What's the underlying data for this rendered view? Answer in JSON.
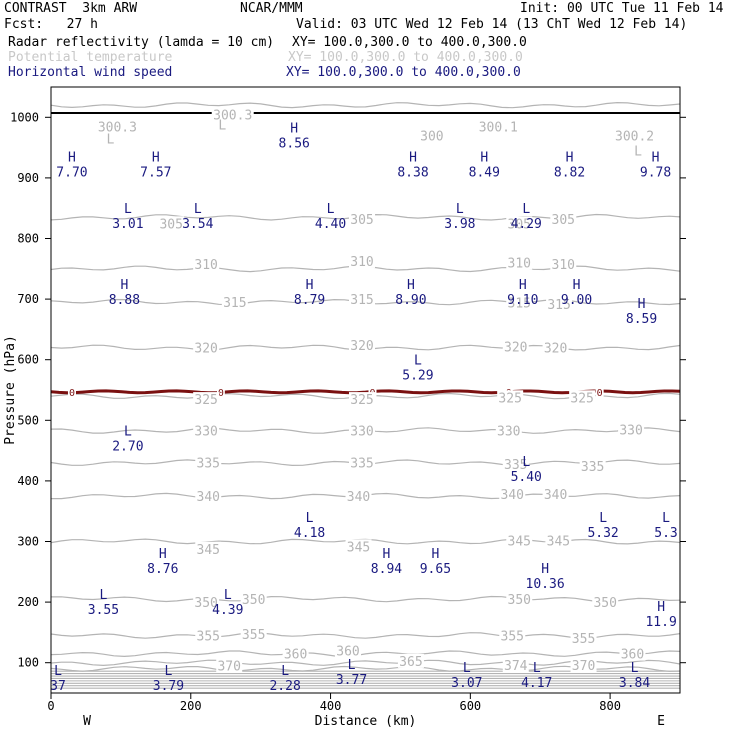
{
  "header": {
    "model": "CONTRAST  3km ARW",
    "org": "NCAR/MMM",
    "init": "Init: 00 UTC Tue 11 Feb 14",
    "fcst": "Fcst:   27 h",
    "valid": "Valid: 03 UTC Wed 12 Feb 14 (13 ChT Wed 12 Feb 14)",
    "fields": [
      {
        "name": "Radar reflectivity (lamda = 10 cm)",
        "xy": "XY= 100.0,300.0 to 400.0,300.0",
        "color": "#000000"
      },
      {
        "name": "Potential temperature",
        "xy": "XY= 100.0,300.0 to 400.0,300.0",
        "color": "#c8c8c8"
      },
      {
        "name": "Horizontal wind speed",
        "xy": "XY= 100.0,300.0 to 400.0,300.0",
        "color": "#1a1a80"
      }
    ]
  },
  "colors": {
    "theta": "#b4b4b4",
    "wind": "#1a1a80",
    "reflectivity": "#7a1010",
    "axis": "#000000"
  },
  "chart_data": {
    "type": "line",
    "title": "",
    "xlabel": "Distance (km)",
    "ylabel": "Pressure (hPa)",
    "xlim": [
      0,
      900
    ],
    "ylim": [
      1050,
      50
    ],
    "xticks": [
      0,
      200,
      400,
      600,
      800
    ],
    "yticks": [
      100,
      200,
      300,
      400,
      500,
      600,
      700,
      800,
      900,
      1000
    ],
    "x_end_labels": [
      "W",
      "E"
    ],
    "theta_contours": [
      {
        "level": 300,
        "p": 1020
      },
      {
        "level": 305,
        "p": 835
      },
      {
        "level": 310,
        "p": 750
      },
      {
        "level": 315,
        "p": 695
      },
      {
        "level": 320,
        "p": 620
      },
      {
        "level": 325,
        "p": 540
      },
      {
        "level": 330,
        "p": 483
      },
      {
        "level": 335,
        "p": 430
      },
      {
        "level": 340,
        "p": 375
      },
      {
        "level": 345,
        "p": 300
      },
      {
        "level": 350,
        "p": 205
      },
      {
        "level": 355,
        "p": 145
      },
      {
        "level": 360,
        "p": 115
      },
      {
        "level": 365,
        "p": 100
      },
      {
        "level": 370,
        "p": 90
      }
    ],
    "theta_labels": [
      {
        "text": "370",
        "x": 255,
        "p": 95
      },
      {
        "text": "360",
        "x": 350,
        "p": 115
      },
      {
        "text": "365",
        "x": 515,
        "p": 103
      },
      {
        "text": "374",
        "x": 665,
        "p": 96
      },
      {
        "text": "370",
        "x": 762,
        "p": 96
      },
      {
        "text": "360",
        "x": 425,
        "p": 120
      },
      {
        "text": "360",
        "x": 832,
        "p": 115
      },
      {
        "text": "355",
        "x": 225,
        "p": 145
      },
      {
        "text": "355",
        "x": 290,
        "p": 147
      },
      {
        "text": "355",
        "x": 660,
        "p": 145
      },
      {
        "text": "355",
        "x": 762,
        "p": 141
      },
      {
        "text": "350",
        "x": 222,
        "p": 200
      },
      {
        "text": "350",
        "x": 290,
        "p": 205
      },
      {
        "text": "350",
        "x": 670,
        "p": 205
      },
      {
        "text": "350",
        "x": 793,
        "p": 200
      },
      {
        "text": "345",
        "x": 225,
        "p": 288
      },
      {
        "text": "345",
        "x": 440,
        "p": 292
      },
      {
        "text": "345",
        "x": 670,
        "p": 302
      },
      {
        "text": "345",
        "x": 726,
        "p": 302
      },
      {
        "text": "340",
        "x": 225,
        "p": 375
      },
      {
        "text": "340",
        "x": 440,
        "p": 375
      },
      {
        "text": "340",
        "x": 660,
        "p": 378
      },
      {
        "text": "340",
        "x": 722,
        "p": 378
      },
      {
        "text": "335",
        "x": 225,
        "p": 430
      },
      {
        "text": "335",
        "x": 445,
        "p": 430
      },
      {
        "text": "335",
        "x": 665,
        "p": 428
      },
      {
        "text": "335",
        "x": 775,
        "p": 425
      },
      {
        "text": "330",
        "x": 222,
        "p": 483
      },
      {
        "text": "330",
        "x": 445,
        "p": 483
      },
      {
        "text": "330",
        "x": 655,
        "p": 483
      },
      {
        "text": "330",
        "x": 830,
        "p": 485
      },
      {
        "text": "325",
        "x": 222,
        "p": 535
      },
      {
        "text": "325",
        "x": 445,
        "p": 535
      },
      {
        "text": "325",
        "x": 657,
        "p": 538
      },
      {
        "text": "325",
        "x": 760,
        "p": 538
      },
      {
        "text": "320",
        "x": 222,
        "p": 620
      },
      {
        "text": "320",
        "x": 445,
        "p": 624
      },
      {
        "text": "320",
        "x": 665,
        "p": 622
      },
      {
        "text": "320",
        "x": 722,
        "p": 620
      },
      {
        "text": "315",
        "x": 263,
        "p": 695
      },
      {
        "text": "315",
        "x": 445,
        "p": 700
      },
      {
        "text": "315",
        "x": 670,
        "p": 694
      },
      {
        "text": "315",
        "x": 727,
        "p": 692
      },
      {
        "text": "310",
        "x": 222,
        "p": 758
      },
      {
        "text": "310",
        "x": 445,
        "p": 763
      },
      {
        "text": "310",
        "x": 670,
        "p": 760
      },
      {
        "text": "310",
        "x": 733,
        "p": 758
      },
      {
        "text": "305",
        "x": 172,
        "p": 825
      },
      {
        "text": "305",
        "x": 445,
        "p": 832
      },
      {
        "text": "305",
        "x": 670,
        "p": 825
      },
      {
        "text": "305",
        "x": 733,
        "p": 832
      },
      {
        "text": "300.3",
        "x": 95,
        "p": 985
      },
      {
        "text": "300.3",
        "x": 260,
        "p": 1005
      },
      {
        "text": "300",
        "x": 545,
        "p": 970
      },
      {
        "text": "300.1",
        "x": 640,
        "p": 985
      },
      {
        "text": "300.2",
        "x": 835,
        "p": 970
      }
    ],
    "theta_extrema": [
      {
        "mark": "L",
        "x": 85,
        "p": 965
      },
      {
        "mark": "L",
        "x": 245,
        "p": 988
      },
      {
        "mark": "L",
        "x": 840,
        "p": 945
      }
    ],
    "wind_extrema": [
      {
        "mark": "H",
        "value": "7.70",
        "x": 30,
        "p": 922
      },
      {
        "mark": "H",
        "value": "7.57",
        "x": 150,
        "p": 922
      },
      {
        "mark": "H",
        "value": "8.38",
        "x": 518,
        "p": 922
      },
      {
        "mark": "H",
        "value": "8.49",
        "x": 620,
        "p": 922
      },
      {
        "mark": "H",
        "value": "8.82",
        "x": 742,
        "p": 922
      },
      {
        "mark": "H",
        "value": "9.78",
        "x": 865,
        "p": 922
      },
      {
        "mark": "H",
        "value": "8.56",
        "x": 348,
        "p": 970
      },
      {
        "mark": "L",
        "value": "3.01",
        "x": 110,
        "p": 837
      },
      {
        "mark": "L",
        "value": "3.54",
        "x": 210,
        "p": 837
      },
      {
        "mark": "L",
        "value": "4.40",
        "x": 400,
        "p": 837
      },
      {
        "mark": "L",
        "value": "3.98",
        "x": 585,
        "p": 837
      },
      {
        "mark": "L",
        "value": "4.29",
        "x": 680,
        "p": 837
      },
      {
        "mark": "H",
        "value": "8.88",
        "x": 105,
        "p": 712
      },
      {
        "mark": "H",
        "value": "8.79",
        "x": 370,
        "p": 712
      },
      {
        "mark": "H",
        "value": "8.90",
        "x": 515,
        "p": 712
      },
      {
        "mark": "H",
        "value": "9.10",
        "x": 675,
        "p": 712
      },
      {
        "mark": "H",
        "value": "9.00",
        "x": 752,
        "p": 712
      },
      {
        "mark": "H",
        "value": "8.59",
        "x": 845,
        "p": 680
      },
      {
        "mark": "L",
        "value": "5.29",
        "x": 525,
        "p": 587
      },
      {
        "mark": "L",
        "value": "2.70",
        "x": 110,
        "p": 470
      },
      {
        "mark": "L",
        "value": "5.40",
        "x": 680,
        "p": 420
      },
      {
        "mark": "L",
        "value": "4.18",
        "x": 370,
        "p": 327
      },
      {
        "mark": "L",
        "value": "5.32",
        "x": 790,
        "p": 327
      },
      {
        "mark": "L",
        "value": "5.3",
        "x": 880,
        "p": 327
      },
      {
        "mark": "H",
        "value": "8.76",
        "x": 160,
        "p": 268
      },
      {
        "mark": "H",
        "value": "8.94",
        "x": 480,
        "p": 268
      },
      {
        "mark": "H",
        "value": "9.65",
        "x": 550,
        "p": 268
      },
      {
        "mark": "H",
        "value": "10.36",
        "x": 707,
        "p": 243
      },
      {
        "mark": "L",
        "value": "3.55",
        "x": 75,
        "p": 200
      },
      {
        "mark": "L",
        "value": "4.39",
        "x": 253,
        "p": 200
      },
      {
        "mark": "H",
        "value": "11.9",
        "x": 873,
        "p": 180
      },
      {
        "mark": "L",
        "value": "37",
        "x": 10,
        "p": 75
      },
      {
        "mark": "L",
        "value": "3.79",
        "x": 168,
        "p": 75
      },
      {
        "mark": "L",
        "value": "2.28",
        "x": 335,
        "p": 75
      },
      {
        "mark": "L",
        "value": "3.77",
        "x": 430,
        "p": 85
      },
      {
        "mark": "L",
        "value": "3.07",
        "x": 595,
        "p": 80
      },
      {
        "mark": "L",
        "value": "4.17",
        "x": 695,
        "p": 80
      },
      {
        "mark": "L",
        "value": "3.84",
        "x": 835,
        "p": 80
      }
    ],
    "reflectivity": {
      "level": 0,
      "label": "0",
      "p": 547,
      "label_x": [
        30,
        243,
        460,
        655,
        785
      ]
    },
    "surface_p": 1007
  }
}
